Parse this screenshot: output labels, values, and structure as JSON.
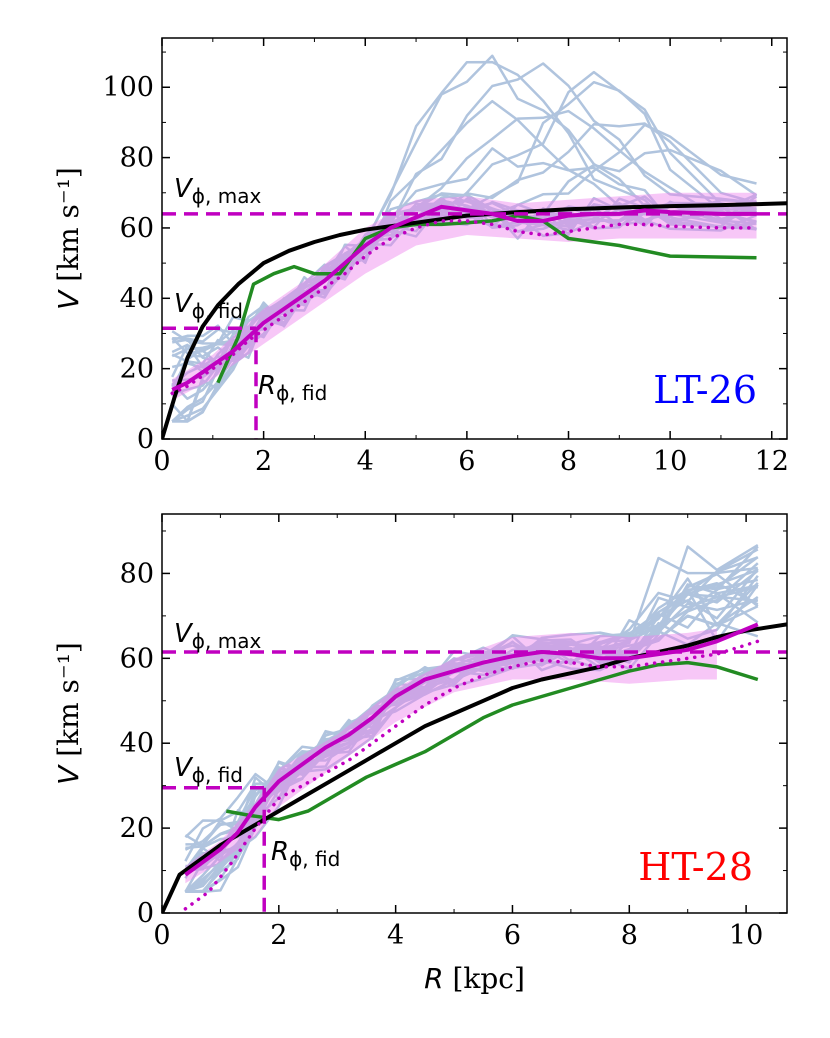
{
  "colors": {
    "realization": "#b0c4de",
    "model": "#000000",
    "green": "#228b22",
    "magenta": "#c000c0",
    "band": "#ee82ee",
    "lt_label": "#0000ff",
    "ht_label": "#ff0000"
  },
  "chart_data": [
    {
      "type": "line",
      "panel": "top",
      "label": "LT-26",
      "xlabel": "R [kpc]",
      "ylabel": "V [km s⁻¹]",
      "xlim": [
        0,
        12.3
      ],
      "ylim": [
        0,
        114
      ],
      "xticks": [
        "0",
        "2",
        "4",
        "6",
        "8",
        "10",
        "12"
      ],
      "yticks": [
        "0",
        "20",
        "40",
        "60",
        "80",
        "100"
      ],
      "annotations": {
        "vmax": "Vϕ, max",
        "vfid": "Vϕ, fid",
        "rfid": "Rϕ, fid"
      },
      "v_max": 64,
      "v_fid": 31.5,
      "r_fid": 1.85,
      "series": [
        {
          "name": "model",
          "x": [
            0,
            0.25,
            0.5,
            0.8,
            1.1,
            1.5,
            2.0,
            2.5,
            3.0,
            3.5,
            4.0,
            5.0,
            6.0,
            7.0,
            8.0,
            9.0,
            10.0,
            11.0,
            12.3
          ],
          "values": [
            0,
            12,
            23,
            32,
            38,
            44,
            50,
            53.5,
            56,
            58,
            59.5,
            61.5,
            63.5,
            64.5,
            65.3,
            65.8,
            66.2,
            66.5,
            67
          ]
        },
        {
          "name": "green",
          "x": [
            1.1,
            1.5,
            1.8,
            2.2,
            2.6,
            3.0,
            3.5,
            4.0,
            4.5,
            5.0,
            5.5,
            6.0,
            6.5,
            7.0,
            7.5,
            8.0,
            9.0,
            10.0,
            11.7
          ],
          "values": [
            16,
            29,
            44,
            47,
            49,
            47,
            47,
            57,
            60,
            61,
            61,
            61.5,
            62,
            63.5,
            62,
            57,
            55,
            52,
            51.5
          ]
        },
        {
          "name": "magenta-solid",
          "x": [
            0.2,
            0.5,
            0.8,
            1.1,
            1.4,
            1.7,
            2.0,
            2.4,
            2.8,
            3.2,
            3.6,
            4.0,
            4.5,
            5.0,
            5.5,
            6.0,
            6.5,
            7.0,
            7.5,
            8.0,
            8.5,
            9.0,
            9.5,
            10.0,
            11.0,
            11.7
          ],
          "values": [
            14,
            16,
            19,
            22,
            25,
            29,
            33,
            37,
            41,
            45,
            50,
            55,
            60,
            63,
            66,
            65,
            64,
            62,
            62,
            63.5,
            64,
            64,
            65,
            64.5,
            64,
            64
          ]
        },
        {
          "name": "magenta-dotted",
          "x": [
            0.2,
            0.5,
            0.8,
            1.1,
            1.4,
            1.7,
            2.0,
            2.4,
            2.8,
            3.2,
            3.6,
            4.0,
            4.5,
            5.0,
            5.5,
            6.0,
            6.5,
            7.0,
            7.5,
            8.0,
            8.5,
            9.0,
            9.5,
            10.0,
            11.0,
            11.7
          ],
          "values": [
            13,
            15,
            18,
            21,
            24,
            28,
            31,
            35,
            39,
            43,
            47,
            52,
            57,
            60,
            62,
            62,
            61,
            59,
            58,
            59,
            60,
            61,
            61,
            60.5,
            60,
            60
          ]
        },
        {
          "name": "band-upper",
          "x": [
            0.2,
            1.0,
            2.0,
            3.0,
            4.0,
            5.0,
            6.0,
            7.0,
            8.0,
            9.0,
            10.0,
            11.0,
            11.7
          ],
          "values": [
            17,
            24,
            37,
            47,
            60,
            68,
            69,
            67,
            68,
            69,
            70,
            70,
            70
          ]
        },
        {
          "name": "band-lower",
          "x": [
            0.2,
            1.0,
            2.0,
            3.0,
            4.0,
            5.0,
            6.0,
            7.0,
            8.0,
            9.0,
            10.0,
            11.0,
            11.7
          ],
          "values": [
            11,
            17,
            27,
            37,
            47,
            55,
            58,
            57,
            56,
            57,
            57,
            57,
            57
          ]
        }
      ]
    },
    {
      "type": "line",
      "panel": "bottom",
      "label": "HT-28",
      "xlabel": "R [kpc]",
      "ylabel": "V [km s⁻¹]",
      "xlim": [
        0,
        10.7
      ],
      "ylim": [
        0,
        94
      ],
      "xticks": [
        "0",
        "2",
        "4",
        "6",
        "8",
        "10"
      ],
      "yticks": [
        "0",
        "20",
        "40",
        "60",
        "80"
      ],
      "annotations": {
        "vmax": "Vϕ, max",
        "vfid": "Vϕ, fid",
        "rfid": "Rϕ, fid"
      },
      "v_max": 61.5,
      "v_fid": 29.5,
      "r_fid": 1.75,
      "series": [
        {
          "name": "model",
          "x": [
            0,
            0.3,
            0.6,
            1.0,
            1.5,
            2.0,
            2.5,
            3.0,
            3.5,
            4.0,
            4.5,
            5.0,
            5.5,
            6.0,
            6.5,
            7.0,
            7.5,
            8.0,
            8.5,
            9.0,
            9.5,
            10.0,
            10.7
          ],
          "values": [
            0,
            9,
            12,
            16,
            20,
            24,
            28,
            32,
            36,
            40,
            44,
            47,
            50,
            53,
            55,
            56.5,
            58,
            60,
            61.5,
            63,
            65,
            66.5,
            68
          ]
        },
        {
          "name": "green",
          "x": [
            1.1,
            1.5,
            2.0,
            2.5,
            3.0,
            3.5,
            4.0,
            4.5,
            5.0,
            5.5,
            6.0,
            6.5,
            7.0,
            7.5,
            8.0,
            8.5,
            9.0,
            9.5,
            10.2
          ],
          "values": [
            24,
            23,
            22,
            24,
            28,
            32,
            35,
            38,
            42,
            46,
            49,
            51,
            53,
            55,
            57,
            58.5,
            59,
            58,
            55
          ]
        },
        {
          "name": "magenta-solid",
          "x": [
            0.4,
            0.7,
            1.0,
            1.3,
            1.6,
            2.0,
            2.4,
            2.8,
            3.2,
            3.6,
            4.0,
            4.5,
            5.0,
            5.5,
            6.0,
            6.5,
            7.0,
            7.5,
            8.0,
            8.5,
            9.0,
            9.5,
            10.2
          ],
          "values": [
            9,
            12,
            15,
            19,
            25,
            31,
            35,
            39,
            42,
            46,
            51,
            55,
            57,
            59,
            60.5,
            61.5,
            61,
            60,
            60,
            61,
            62,
            64,
            68
          ]
        },
        {
          "name": "magenta-dotted",
          "x": [
            0.4,
            0.8,
            1.2,
            1.6,
            2.0,
            2.4,
            2.8,
            3.2,
            3.6,
            4.0,
            4.5,
            5.0,
            5.5,
            6.0,
            6.5,
            7.0,
            7.5,
            8.0,
            8.5,
            9.0,
            9.5,
            10.2
          ],
          "values": [
            1,
            5,
            12,
            20,
            27,
            30,
            33,
            36,
            40,
            44,
            49,
            53,
            56,
            58,
            59.5,
            59,
            58,
            58,
            59,
            60,
            61,
            64
          ]
        },
        {
          "name": "band-upper",
          "x": [
            0.4,
            1.0,
            1.6,
            2.0,
            3.0,
            4.0,
            5.0,
            6.0,
            7.0,
            8.0,
            9.0,
            9.5
          ],
          "values": [
            11,
            17,
            26,
            34,
            42,
            53,
            60,
            65,
            66,
            65,
            66,
            67
          ]
        },
        {
          "name": "band-lower",
          "x": [
            0.4,
            1.0,
            1.6,
            2.0,
            3.0,
            4.0,
            5.0,
            6.0,
            7.0,
            8.0,
            9.0,
            9.5
          ],
          "values": [
            7,
            12,
            18,
            25,
            35,
            45,
            52,
            55,
            55,
            54,
            55,
            55
          ]
        }
      ]
    }
  ]
}
